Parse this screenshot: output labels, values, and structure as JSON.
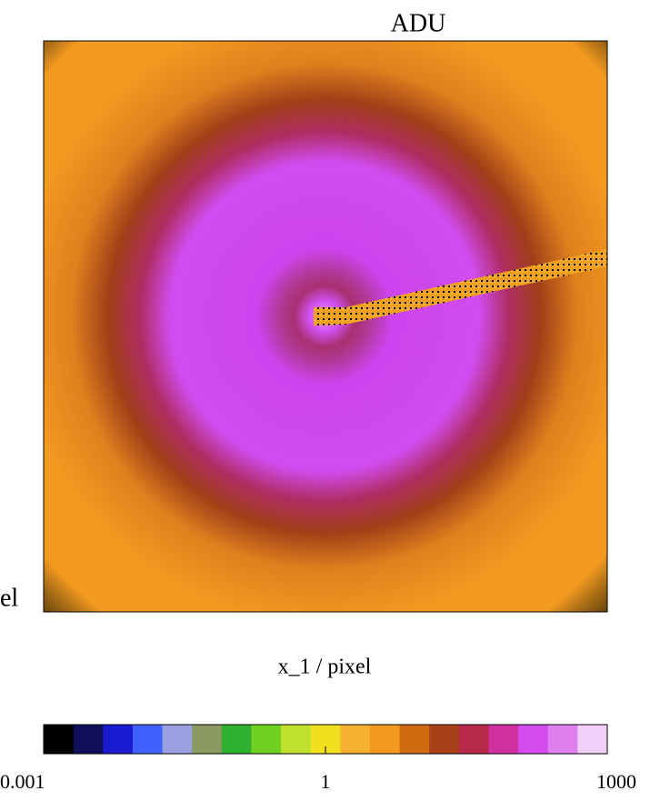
{
  "chart_data": {
    "type": "image",
    "title": "ADU",
    "xlabel": "x_1 / pixel",
    "ylabel": "el",
    "colorbar": {
      "log": true,
      "lim": [
        0.001,
        1000
      ],
      "ticks": [
        0.001,
        1,
        1000
      ],
      "colormap": [
        "#000000",
        "#10105a",
        "#1a1ad0",
        "#4060ff",
        "#9aa0e0",
        "#8a9a60",
        "#30b030",
        "#70d020",
        "#c0e030",
        "#f0e020",
        "#f5b030",
        "#f29a1e",
        "#d06a10",
        "#a84018",
        "#b82848",
        "#d030a0",
        "#d34cf0",
        "#e080f0",
        "#f0d0f8"
      ]
    }
  }
}
